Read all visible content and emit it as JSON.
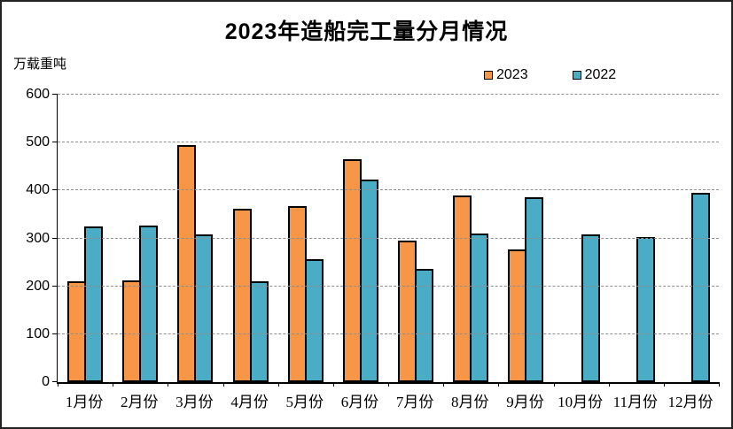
{
  "header": {
    "title": "2023年造船完工量分月情况",
    "unit_label": "万载重吨"
  },
  "legend": {
    "items": [
      {
        "label": "2023",
        "color": "#F79646"
      },
      {
        "label": "2022",
        "color": "#4BACC6"
      }
    ]
  },
  "chart_data": {
    "type": "bar",
    "title": "2023年造船完工量分月情况",
    "ylabel": "万载重吨",
    "xlabel": "",
    "categories": [
      "1月份",
      "2月份",
      "3月份",
      "4月份",
      "5月份",
      "6月份",
      "7月份",
      "8月份",
      "9月份",
      "10月份",
      "11月份",
      "12月份"
    ],
    "series": [
      {
        "name": "2023",
        "color": "#F79646",
        "values": [
          211,
          212,
          494,
          362,
          368,
          466,
          296,
          389,
          277,
          null,
          null,
          null
        ]
      },
      {
        "name": "2022",
        "color": "#4BACC6",
        "values": [
          325,
          327,
          308,
          210,
          257,
          423,
          236,
          310,
          385,
          308,
          303,
          395
        ]
      }
    ],
    "ylim": [
      0,
      600
    ],
    "ytick_interval": 100,
    "yticks": [
      0,
      100,
      200,
      300,
      400,
      500,
      600
    ],
    "grid": "horizontal-dashed",
    "legend_position": "top-right",
    "bar_border_color": "#000000",
    "gridline_color": "#8f8f8f"
  },
  "colors": {
    "background": "#FFFFFF",
    "frame_border": "#222222",
    "axis": "#000000",
    "series_2023": "#F79646",
    "series_2022": "#4BACC6"
  }
}
